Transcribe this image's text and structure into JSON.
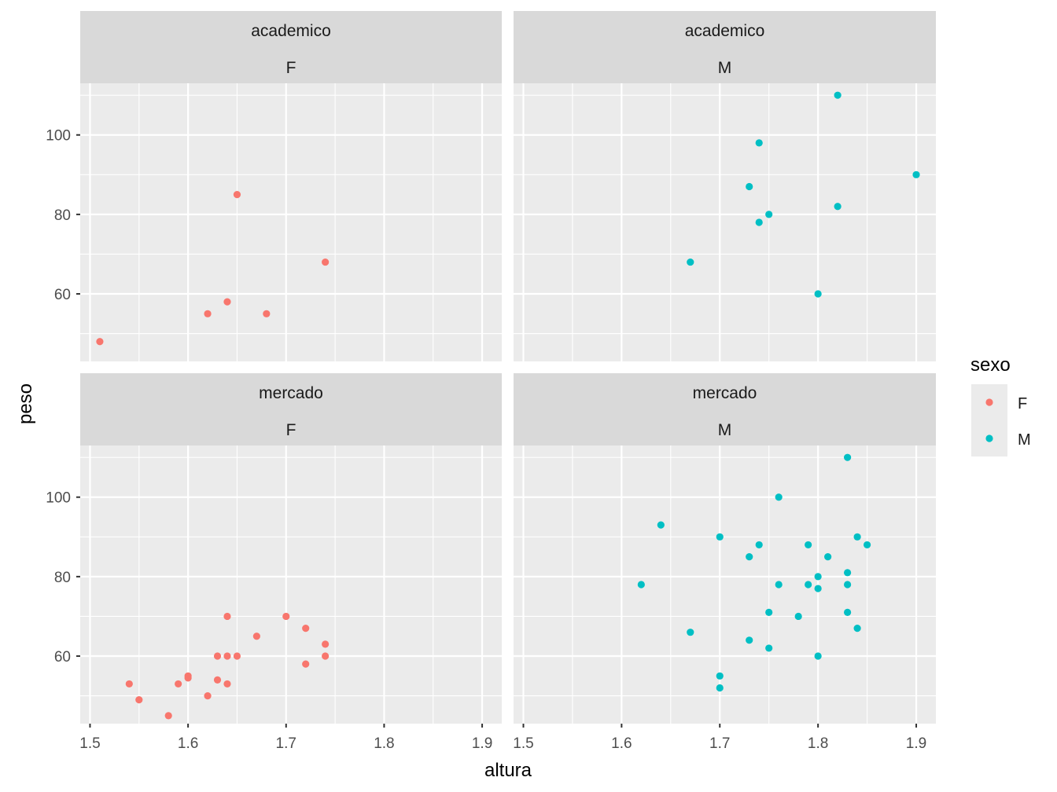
{
  "chart_data": {
    "type": "scatter",
    "xlabel": "altura",
    "ylabel": "peso",
    "xlim": [
      1.49,
      1.92
    ],
    "ylim": [
      43,
      113
    ],
    "x_ticks": [
      1.5,
      1.6,
      1.7,
      1.8,
      1.9
    ],
    "x_tick_labels": [
      "1.5",
      "1.6",
      "1.7",
      "1.8",
      "1.9"
    ],
    "y_ticks": [
      60,
      80,
      100
    ],
    "y_tick_labels": [
      "60",
      "80",
      "100"
    ],
    "grid": true,
    "legend": {
      "title": "sexo",
      "position": "right",
      "entries": [
        {
          "label": "F",
          "color": "#F8766D"
        },
        {
          "label": "M",
          "color": "#00BFC4"
        }
      ]
    },
    "panels": [
      {
        "row_label": "academico",
        "col_label": "F",
        "series": "F",
        "points": [
          [
            1.51,
            48
          ],
          [
            1.62,
            55
          ],
          [
            1.64,
            58
          ],
          [
            1.65,
            85
          ],
          [
            1.68,
            55
          ],
          [
            1.74,
            68
          ]
        ]
      },
      {
        "row_label": "academico",
        "col_label": "M",
        "series": "M",
        "points": [
          [
            1.67,
            68
          ],
          [
            1.73,
            87
          ],
          [
            1.74,
            98
          ],
          [
            1.74,
            78
          ],
          [
            1.75,
            80
          ],
          [
            1.8,
            60
          ],
          [
            1.82,
            110
          ],
          [
            1.82,
            82
          ],
          [
            1.9,
            90
          ]
        ]
      },
      {
        "row_label": "mercado",
        "col_label": "F",
        "series": "F",
        "points": [
          [
            1.54,
            53
          ],
          [
            1.55,
            49
          ],
          [
            1.58,
            45
          ],
          [
            1.59,
            53
          ],
          [
            1.6,
            55
          ],
          [
            1.6,
            54.5
          ],
          [
            1.62,
            50
          ],
          [
            1.63,
            60
          ],
          [
            1.63,
            54
          ],
          [
            1.64,
            70
          ],
          [
            1.64,
            60
          ],
          [
            1.64,
            53
          ],
          [
            1.65,
            60
          ],
          [
            1.67,
            65
          ],
          [
            1.7,
            70
          ],
          [
            1.72,
            67
          ],
          [
            1.72,
            58
          ],
          [
            1.74,
            63
          ],
          [
            1.74,
            60
          ]
        ]
      },
      {
        "row_label": "mercado",
        "col_label": "M",
        "series": "M",
        "points": [
          [
            1.62,
            78
          ],
          [
            1.64,
            93
          ],
          [
            1.67,
            66
          ],
          [
            1.7,
            90
          ],
          [
            1.7,
            55
          ],
          [
            1.7,
            52
          ],
          [
            1.73,
            85
          ],
          [
            1.73,
            64
          ],
          [
            1.74,
            88
          ],
          [
            1.75,
            71
          ],
          [
            1.75,
            62
          ],
          [
            1.76,
            100
          ],
          [
            1.76,
            78
          ],
          [
            1.78,
            70
          ],
          [
            1.79,
            88
          ],
          [
            1.79,
            78
          ],
          [
            1.8,
            80
          ],
          [
            1.8,
            77
          ],
          [
            1.8,
            60
          ],
          [
            1.81,
            85
          ],
          [
            1.83,
            110
          ],
          [
            1.83,
            81
          ],
          [
            1.83,
            78
          ],
          [
            1.83,
            71
          ],
          [
            1.84,
            90
          ],
          [
            1.84,
            67
          ],
          [
            1.85,
            88
          ]
        ]
      }
    ]
  }
}
